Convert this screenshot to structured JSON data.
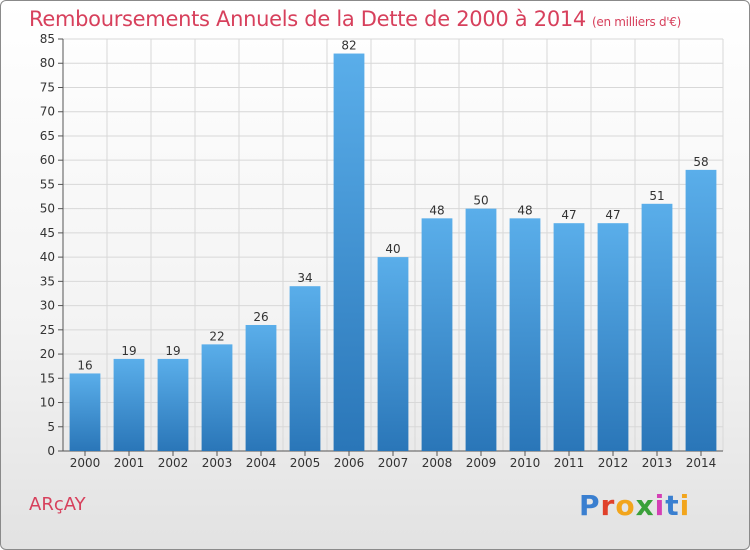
{
  "header": {
    "title": "Remboursements Annuels de la Dette de 2000 à 2014",
    "unit": "(en milliers d'€)"
  },
  "footer": {
    "place": "ARçAY",
    "logo_text": "Proxiti",
    "logo_colors": [
      "#3a7fd0",
      "#e0402a",
      "#f2a51c",
      "#3aa03a",
      "#d43fb5",
      "#3a7fd0",
      "#f2a51c"
    ]
  },
  "colors": {
    "title": "#d7405c",
    "bar_top": "#5aaeea",
    "bar_bottom": "#2a76b8",
    "grid": "#d8d8d8"
  },
  "chart_data": {
    "type": "bar",
    "title": "Remboursements Annuels de la Dette de 2000 à 2014",
    "subtitle": "(en milliers d'€)",
    "xlabel": "",
    "ylabel": "",
    "categories": [
      "2000",
      "2001",
      "2002",
      "2003",
      "2004",
      "2005",
      "2006",
      "2007",
      "2008",
      "2009",
      "2010",
      "2011",
      "2012",
      "2013",
      "2014"
    ],
    "values": [
      16,
      19,
      19,
      22,
      26,
      34,
      82,
      40,
      48,
      50,
      48,
      47,
      47,
      51,
      58
    ],
    "ylim": [
      0,
      85
    ],
    "yticks": [
      0,
      5,
      10,
      15,
      20,
      25,
      30,
      35,
      40,
      45,
      50,
      55,
      60,
      65,
      70,
      75,
      80,
      85
    ],
    "grid": true,
    "legend": "none"
  }
}
